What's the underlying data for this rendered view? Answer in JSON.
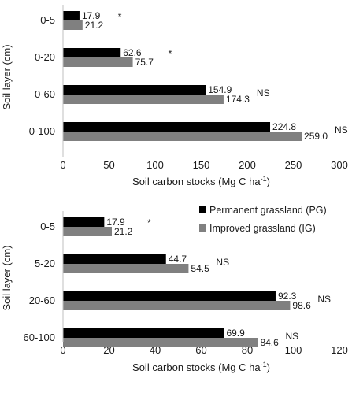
{
  "colors": {
    "pg": "#000000",
    "ig": "#808080",
    "axis": "#bfbfbf",
    "grid": "#d9d9d9"
  },
  "legend": {
    "pg": "Permanent grassland (PG)",
    "ig": "Improved grassland (IG)"
  },
  "chart_data": [
    {
      "type": "bar",
      "orientation": "horizontal",
      "categories": [
        "0-5",
        "0-20",
        "0-60",
        "0-100"
      ],
      "series": [
        {
          "name": "Permanent grassland (PG)",
          "values": [
            17.9,
            62.6,
            154.9,
            224.8
          ],
          "labels": [
            "17.9",
            "62.6",
            "154.9",
            "224.8"
          ]
        },
        {
          "name": "Improved grassland (IG)",
          "values": [
            21.2,
            75.7,
            174.3,
            259.0
          ],
          "labels": [
            "21.2",
            "75.7",
            "174.3",
            "259.0"
          ]
        }
      ],
      "significance": [
        "*",
        "*",
        "NS",
        "NS"
      ],
      "xlabel_main": "Soil carbon stocks (Mg C ha",
      "xlabel_sup": "-1",
      "xlabel_end": ")",
      "ylabel": "Soil layer (cm)",
      "xlim": [
        0,
        300
      ],
      "xticks": [
        0,
        50,
        100,
        150,
        200,
        250,
        300
      ],
      "xtick_labels": [
        "0",
        "50",
        "100",
        "150",
        "200",
        "250",
        "300"
      ],
      "grid": false,
      "legend": "none"
    },
    {
      "type": "bar",
      "orientation": "horizontal",
      "categories": [
        "0-5",
        "5-20",
        "20-60",
        "60-100"
      ],
      "series": [
        {
          "name": "Permanent grassland (PG)",
          "values": [
            17.9,
            44.7,
            92.3,
            69.9
          ],
          "labels": [
            "17.9",
            "44.7",
            "92.3",
            "69.9"
          ]
        },
        {
          "name": "Improved grassland (IG)",
          "values": [
            21.2,
            54.5,
            98.6,
            84.6
          ],
          "labels": [
            "21.2",
            "54.5",
            "98.6",
            "84.6"
          ]
        }
      ],
      "significance": [
        "*",
        "NS",
        "NS",
        "NS"
      ],
      "xlabel_main": "Soil carbon stocks (Mg C ha",
      "xlabel_sup": "-1",
      "xlabel_end": ")",
      "ylabel": "Soil layer (cm)",
      "xlim": [
        0,
        120
      ],
      "xticks": [
        0,
        20,
        40,
        60,
        80,
        100,
        120
      ],
      "xtick_labels": [
        "0",
        "20",
        "40",
        "60",
        "80",
        "100",
        "120"
      ],
      "grid": false,
      "legend": "top-right"
    }
  ]
}
